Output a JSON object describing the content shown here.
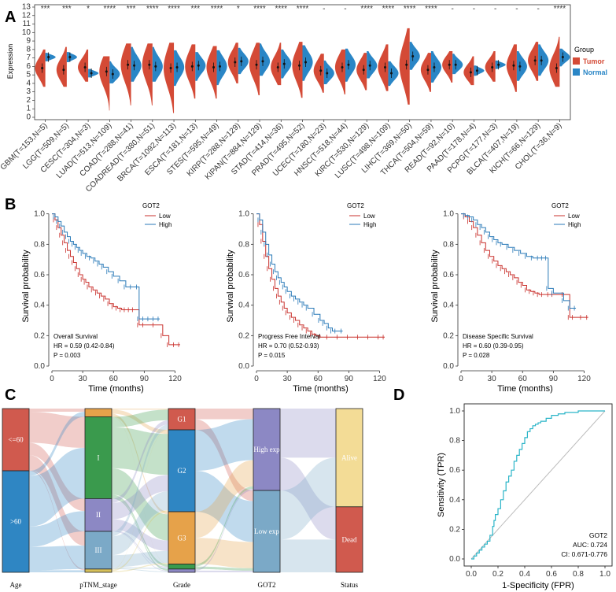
{
  "figure": {
    "panel_labels": [
      "A",
      "B",
      "C",
      "D"
    ]
  },
  "chart_data": [
    {
      "type": "violin",
      "panel": "A",
      "ylabel": "Expression",
      "ylim": [
        0,
        13
      ],
      "yticks": [
        0,
        1,
        2,
        3,
        4,
        5,
        6,
        7,
        8,
        9,
        10,
        11,
        12,
        13
      ],
      "legend": {
        "title": "Group",
        "items": [
          {
            "name": "Tumor",
            "color": "#d44a36"
          },
          {
            "name": "Normal",
            "color": "#2a86c6"
          }
        ]
      },
      "categories": [
        "GBM(T=153,N=5)",
        "LGG(T=509,N=5)",
        "CESC(T=304,N=3)",
        "LUAD(T=513,N=109)",
        "COAD(T=288,N=41)",
        "COADREAD(T=380,N=51)",
        "BRCA(T=1092,N=113)",
        "ESCA(T=181,N=13)",
        "STES(T=595,N=49)",
        "KIRP(T=288,N=129)",
        "KIPAN(T=884,N=129)",
        "STAD(T=414,N=36)",
        "PRAD(T=495,N=52)",
        "UCEC(T=180,N=23)",
        "HNSC(T=518,N=44)",
        "KIRC(T=530,N=129)",
        "LUSC(T=498,N=109)",
        "LIHC(T=369,N=50)",
        "THCA(T=504,N=59)",
        "READ(T=92,N=10)",
        "PAAD(T=178,N=4)",
        "PCPG(T=177,N=3)",
        "BLCA(T=407,N=19)",
        "KICH(T=66,N=129)",
        "CHOL(T=36,N=9)"
      ],
      "significance": [
        "***",
        "***",
        "*",
        "****",
        "***",
        "****",
        "****",
        "***",
        "****",
        "*",
        "****",
        "****",
        "****",
        "-",
        "-",
        "****",
        "****",
        "****",
        "****",
        "-",
        "-",
        "-",
        "-",
        "-",
        "****"
      ],
      "tumor_median": [
        5.8,
        5.6,
        5.9,
        5.4,
        6.2,
        6.2,
        5.8,
        6.0,
        5.9,
        6.5,
        6.2,
        5.9,
        6.1,
        5.5,
        5.9,
        5.6,
        5.9,
        6.2,
        5.6,
        6.2,
        5.3,
        5.9,
        6.1,
        6.7,
        5.8
      ],
      "normal_median": [
        7.1,
        7.1,
        5.2,
        5.1,
        6.1,
        6.0,
        5.9,
        6.1,
        6.0,
        6.6,
        6.6,
        6.3,
        6.5,
        5.2,
        6.2,
        6.1,
        5.2,
        7.2,
        5.9,
        6.2,
        5.5,
        6.2,
        6.0,
        6.7,
        7.1
      ],
      "tumor_range": [
        [
          3.6,
          8.0
        ],
        [
          3.6,
          8.3
        ],
        [
          4.2,
          8.0
        ],
        [
          0.8,
          7.2
        ],
        [
          1.4,
          8.7
        ],
        [
          1.4,
          8.7
        ],
        [
          0.5,
          8.8
        ],
        [
          2.2,
          8.6
        ],
        [
          2.2,
          8.4
        ],
        [
          4.0,
          8.8
        ],
        [
          2.6,
          8.8
        ],
        [
          3.8,
          8.8
        ],
        [
          2.3,
          8.9
        ],
        [
          2.9,
          7.5
        ],
        [
          2.7,
          8.0
        ],
        [
          3.2,
          7.6
        ],
        [
          3.1,
          8.6
        ],
        [
          1.5,
          10.5
        ],
        [
          3.0,
          7.6
        ],
        [
          4.1,
          7.8
        ],
        [
          3.8,
          7.2
        ],
        [
          4.2,
          7.8
        ],
        [
          3.0,
          8.6
        ],
        [
          4.3,
          8.9
        ],
        [
          3.6,
          9.5
        ]
      ],
      "normal_range": [
        [
          6.6,
          7.6
        ],
        [
          6.5,
          7.7
        ],
        [
          4.7,
          5.7
        ],
        [
          4.0,
          6.6
        ],
        [
          4.2,
          8.3
        ],
        [
          4.2,
          8.3
        ],
        [
          3.7,
          7.9
        ],
        [
          4.3,
          7.7
        ],
        [
          3.8,
          7.9
        ],
        [
          5.1,
          8.2
        ],
        [
          4.9,
          8.7
        ],
        [
          4.6,
          8.0
        ],
        [
          4.3,
          8.5
        ],
        [
          3.9,
          6.7
        ],
        [
          4.2,
          8.1
        ],
        [
          4.6,
          7.8
        ],
        [
          3.7,
          6.6
        ],
        [
          5.6,
          8.9
        ],
        [
          4.1,
          7.8
        ],
        [
          5.1,
          7.5
        ],
        [
          4.9,
          6.1
        ],
        [
          5.7,
          6.7
        ],
        [
          4.3,
          7.8
        ],
        [
          4.9,
          8.6
        ],
        [
          6.0,
          8.1
        ]
      ]
    },
    {
      "type": "line",
      "panel": "B",
      "subtype": "kaplan-meier",
      "xlabel": "Time (months)",
      "ylabel": "Survival probability",
      "xlim": [
        0,
        125
      ],
      "ylim": [
        0,
        1.05
      ],
      "xticks": [
        0,
        30,
        60,
        90,
        120
      ],
      "yticks": [
        "0.0",
        "0.2",
        "0.4",
        "0.6",
        "0.8",
        "1.0"
      ],
      "legend_title": "GOT2",
      "series_names": [
        "Low",
        "High"
      ],
      "series_colors": [
        "#c9302c",
        "#2a7ab8"
      ],
      "plots": [
        {
          "title": "Overall Survival",
          "hr": "HR = 0.59 (0.42-0.84)",
          "p": "P = 0.003",
          "series": [
            {
              "name": "Low",
              "x": [
                0,
                3,
                6,
                9,
                12,
                15,
                18,
                21,
                24,
                27,
                30,
                33,
                36,
                40,
                44,
                48,
                52,
                56,
                60,
                64,
                68,
                72,
                76,
                80,
                85,
                90,
                100,
                108,
                114,
                120,
                125
              ],
              "y": [
                1.0,
                0.96,
                0.91,
                0.86,
                0.81,
                0.76,
                0.72,
                0.68,
                0.64,
                0.6,
                0.57,
                0.55,
                0.52,
                0.5,
                0.48,
                0.46,
                0.44,
                0.41,
                0.39,
                0.38,
                0.37,
                0.37,
                0.37,
                0.37,
                0.27,
                0.27,
                0.27,
                0.2,
                0.14,
                0.14,
                0.14
              ]
            },
            {
              "name": "High",
              "x": [
                0,
                3,
                6,
                9,
                12,
                15,
                18,
                21,
                24,
                27,
                30,
                34,
                38,
                42,
                46,
                50,
                55,
                60,
                66,
                72,
                78,
                84,
                85,
                90,
                95,
                100,
                105
              ],
              "y": [
                1.0,
                0.98,
                0.95,
                0.92,
                0.88,
                0.85,
                0.82,
                0.8,
                0.78,
                0.76,
                0.74,
                0.72,
                0.71,
                0.69,
                0.67,
                0.65,
                0.62,
                0.59,
                0.56,
                0.52,
                0.52,
                0.52,
                0.31,
                0.31,
                0.31,
                0.31,
                0.31
              ]
            }
          ]
        },
        {
          "title": "Progress Free Interval",
          "hr": "HR = 0.70 (0.52-0.93)",
          "p": "P = 0.015",
          "series": [
            {
              "name": "Low",
              "x": [
                0,
                3,
                6,
                9,
                12,
                15,
                18,
                21,
                24,
                27,
                30,
                34,
                38,
                42,
                46,
                50,
                54,
                58,
                62,
                70,
                80,
                90,
                100,
                110,
                120,
                125
              ],
              "y": [
                1.0,
                0.93,
                0.82,
                0.72,
                0.64,
                0.57,
                0.51,
                0.46,
                0.42,
                0.38,
                0.35,
                0.32,
                0.3,
                0.27,
                0.25,
                0.23,
                0.21,
                0.2,
                0.19,
                0.19,
                0.19,
                0.19,
                0.19,
                0.19,
                0.19,
                0.19
              ]
            },
            {
              "name": "High",
              "x": [
                0,
                3,
                6,
                9,
                12,
                15,
                18,
                21,
                24,
                27,
                30,
                34,
                38,
                42,
                46,
                50,
                56,
                62,
                66,
                70,
                74,
                78,
                84
              ],
              "y": [
                1.0,
                0.96,
                0.88,
                0.8,
                0.73,
                0.67,
                0.62,
                0.58,
                0.55,
                0.52,
                0.49,
                0.46,
                0.44,
                0.42,
                0.4,
                0.38,
                0.34,
                0.3,
                0.28,
                0.25,
                0.23,
                0.23,
                0.23
              ]
            }
          ]
        },
        {
          "title": "Disease Specific Survival",
          "hr": "HR = 0.60 (0.39-0.95)",
          "p": "P = 0.028",
          "series": [
            {
              "name": "Low",
              "x": [
                0,
                4,
                8,
                12,
                16,
                20,
                24,
                28,
                32,
                36,
                40,
                44,
                48,
                52,
                56,
                60,
                64,
                68,
                72,
                76,
                80,
                86,
                90,
                100,
                106,
                110,
                118,
                124
              ],
              "y": [
                1.0,
                0.98,
                0.95,
                0.91,
                0.86,
                0.81,
                0.76,
                0.72,
                0.69,
                0.66,
                0.64,
                0.62,
                0.6,
                0.58,
                0.55,
                0.53,
                0.5,
                0.49,
                0.48,
                0.47,
                0.47,
                0.47,
                0.47,
                0.47,
                0.32,
                0.32,
                0.32,
                0.32
              ]
            },
            {
              "name": "High",
              "x": [
                0,
                4,
                8,
                12,
                16,
                20,
                24,
                28,
                32,
                36,
                40,
                46,
                52,
                58,
                64,
                70,
                76,
                80,
                84,
                85,
                90,
                100,
                106,
                112
              ],
              "y": [
                1.0,
                0.99,
                0.98,
                0.96,
                0.93,
                0.91,
                0.88,
                0.85,
                0.83,
                0.81,
                0.8,
                0.78,
                0.76,
                0.74,
                0.72,
                0.71,
                0.71,
                0.71,
                0.71,
                0.51,
                0.48,
                0.43,
                0.38,
                0.38
              ]
            }
          ]
        }
      ]
    },
    {
      "type": "sankey",
      "panel": "C",
      "axes": [
        "Age",
        "pTNM_stage",
        "Grade",
        "GOT2",
        "Status"
      ],
      "nodes": {
        "Age": [
          {
            "label": "<=60",
            "frac": 0.38,
            "color": "#d05a4e"
          },
          {
            "label": ">60",
            "frac": 0.62,
            "color": "#2f86c3"
          }
        ],
        "pTNM_stage": [
          {
            "label": "",
            "frac": 0.05,
            "color": "#e6a24a"
          },
          {
            "label": "I",
            "frac": 0.5,
            "color": "#3a9a4d"
          },
          {
            "label": "II",
            "frac": 0.2,
            "color": "#8c88c4"
          },
          {
            "label": "III",
            "frac": 0.23,
            "color": "#7ba9c7"
          },
          {
            "label": "",
            "frac": 0.02,
            "color": "#d6c05a"
          }
        ],
        "Grade": [
          {
            "label": "G1",
            "frac": 0.13,
            "color": "#d05a4e"
          },
          {
            "label": "G2",
            "frac": 0.5,
            "color": "#2f86c3"
          },
          {
            "label": "G3",
            "frac": 0.32,
            "color": "#e6a24a"
          },
          {
            "label": "",
            "frac": 0.03,
            "color": "#3a9a4d"
          },
          {
            "label": "",
            "frac": 0.02,
            "color": "#8c88c4"
          }
        ],
        "GOT2": [
          {
            "label": "High exp",
            "frac": 0.5,
            "color": "#8c88c4"
          },
          {
            "label": "Low exp",
            "frac": 0.5,
            "color": "#7ba9c7"
          }
        ],
        "Status": [
          {
            "label": "Alive",
            "frac": 0.6,
            "color": "#f3dc96"
          },
          {
            "label": "Dead",
            "frac": 0.4,
            "color": "#d05a4e"
          }
        ]
      }
    },
    {
      "type": "line",
      "panel": "D",
      "subtype": "roc",
      "xlabel": "1-Specificity (FPR)",
      "ylabel": "Sensitivity (TPR)",
      "xlim": [
        0,
        1
      ],
      "ylim": [
        0,
        1
      ],
      "xticks": [
        "0.0",
        "0.2",
        "0.4",
        "0.6",
        "0.8",
        "1.0"
      ],
      "yticks": [
        "0.0",
        "0.2",
        "0.4",
        "0.6",
        "0.8",
        "1.0"
      ],
      "annotations": [
        "GOT2",
        "AUC: 0.724",
        "CI: 0.671-0.776"
      ],
      "series": [
        {
          "name": "GOT2",
          "color": "#2bb5c8",
          "fpr": [
            0,
            0.02,
            0.04,
            0.06,
            0.08,
            0.1,
            0.12,
            0.14,
            0.16,
            0.17,
            0.18,
            0.2,
            0.22,
            0.24,
            0.26,
            0.28,
            0.3,
            0.32,
            0.34,
            0.36,
            0.38,
            0.4,
            0.42,
            0.44,
            0.46,
            0.48,
            0.5,
            0.52,
            0.56,
            0.6,
            0.65,
            0.7,
            0.8,
            0.9,
            1.0
          ],
          "tpr": [
            0,
            0.02,
            0.04,
            0.06,
            0.08,
            0.1,
            0.12,
            0.16,
            0.22,
            0.26,
            0.3,
            0.34,
            0.4,
            0.46,
            0.52,
            0.56,
            0.6,
            0.66,
            0.7,
            0.74,
            0.78,
            0.82,
            0.86,
            0.88,
            0.9,
            0.91,
            0.92,
            0.93,
            0.95,
            0.97,
            0.98,
            0.99,
            1.0,
            1.0,
            1.0
          ]
        }
      ]
    }
  ]
}
